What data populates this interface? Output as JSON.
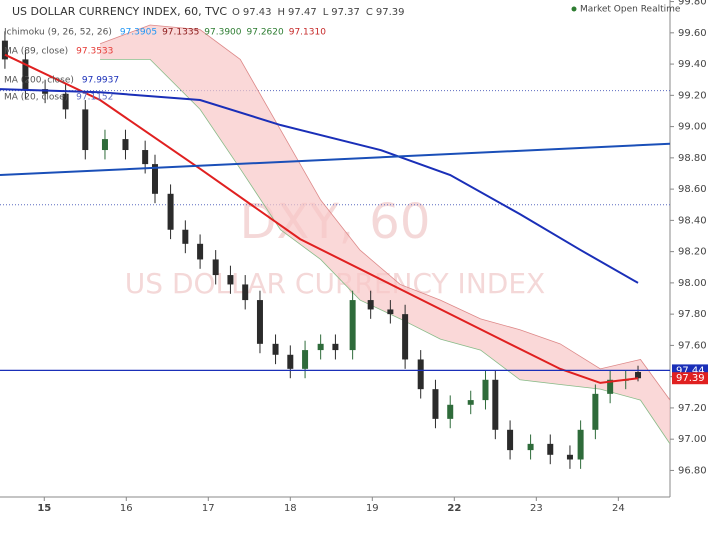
{
  "chart_data": {
    "type": "candlestick",
    "title": "US DOLLAR CURRENCY INDEX, 60, TVC",
    "status": "Market Open Realtime",
    "watermark": [
      "DXY, 60",
      "US DOLLAR CURRENCY INDEX"
    ],
    "ohlc_header": [
      {
        "label": "O",
        "value": "97.43"
      },
      {
        "label": "H",
        "value": "97.47"
      },
      {
        "label": "L",
        "value": "97.37"
      },
      {
        "label": "C",
        "value": "97.39"
      }
    ],
    "indicators": [
      {
        "label": "Ichimoku (9, 26, 52, 26)",
        "values": [
          "97.3905",
          "97.1335",
          "97.3900",
          "97.2620",
          "97.1310"
        ],
        "colors": [
          "#2196f3",
          "#8b1a1a",
          "#2e7d32",
          "#2e7d32",
          "#c62828"
        ]
      },
      {
        "label": "MA (89, close)",
        "values": [
          "97.3533"
        ],
        "colors": [
          "#e53935"
        ]
      },
      {
        "label": "MA (200, close)",
        "values": [
          "97.9937"
        ],
        "colors": [
          "#1a2fb8"
        ]
      },
      {
        "label": "MA (20, close)",
        "values": [
          "97.1152"
        ],
        "colors": [
          "#5c6bc0"
        ]
      }
    ],
    "x": [
      -0.48,
      -0.23,
      0.01,
      0.26,
      0.5,
      0.74,
      0.99,
      1.23,
      1.35,
      1.54,
      1.72,
      1.9,
      2.09,
      2.27,
      2.45,
      2.63,
      2.82,
      3.0,
      3.18,
      3.37,
      3.55,
      3.76,
      3.98,
      4.22,
      4.4,
      4.59,
      4.77,
      4.95,
      5.2,
      5.38,
      5.5,
      5.68,
      5.93,
      6.17,
      6.41,
      6.54,
      6.72,
      6.9,
      7.09,
      7.24
    ],
    "open": [
      99.55,
      99.43,
      99.24,
      99.21,
      99.11,
      98.85,
      98.92,
      98.85,
      98.76,
      98.57,
      98.34,
      98.25,
      98.15,
      98.05,
      97.99,
      97.89,
      97.61,
      97.54,
      97.45,
      97.57,
      97.61,
      97.57,
      97.89,
      97.83,
      97.8,
      97.51,
      97.32,
      97.13,
      97.22,
      97.25,
      97.38,
      97.06,
      96.93,
      96.97,
      96.9,
      96.87,
      97.06,
      97.29,
      97.38,
      97.43
    ],
    "high": [
      99.61,
      99.49,
      99.3,
      99.27,
      99.17,
      98.98,
      98.98,
      98.91,
      98.82,
      98.63,
      98.4,
      98.31,
      98.21,
      98.11,
      98.05,
      97.95,
      97.67,
      97.6,
      97.63,
      97.67,
      97.67,
      97.95,
      97.95,
      97.89,
      97.86,
      97.57,
      97.38,
      97.28,
      97.31,
      97.44,
      97.44,
      97.12,
      97.03,
      97.03,
      96.96,
      97.12,
      97.35,
      97.44,
      97.44,
      97.47
    ],
    "low": [
      99.37,
      99.18,
      99.15,
      99.05,
      98.79,
      98.79,
      98.79,
      98.7,
      98.51,
      98.28,
      98.19,
      98.09,
      97.99,
      97.93,
      97.83,
      97.55,
      97.48,
      97.39,
      97.39,
      97.51,
      97.51,
      97.51,
      97.77,
      97.74,
      97.45,
      97.26,
      97.07,
      97.07,
      97.16,
      97.19,
      97.0,
      96.87,
      96.87,
      96.84,
      96.81,
      96.81,
      97.0,
      97.23,
      97.32,
      97.37
    ],
    "close": [
      99.43,
      99.24,
      99.21,
      99.11,
      98.85,
      98.92,
      98.85,
      98.76,
      98.57,
      98.34,
      98.25,
      98.15,
      98.05,
      97.99,
      97.89,
      97.61,
      97.54,
      97.45,
      97.57,
      97.61,
      97.57,
      97.89,
      97.83,
      97.8,
      97.51,
      97.32,
      97.13,
      97.22,
      97.25,
      97.38,
      97.06,
      96.93,
      96.97,
      96.9,
      96.87,
      97.06,
      97.29,
      97.38,
      97.38,
      97.39
    ],
    "up_color": "#2e6b3a",
    "down_color": "#2b2b2b",
    "cloud": {
      "x": [
        0.68,
        1.29,
        1.9,
        2.39,
        2.88,
        3.37,
        3.85,
        4.34,
        4.83,
        5.32,
        5.8,
        6.29,
        6.78,
        7.27,
        7.63
      ],
      "upper": [
        99.53,
        99.65,
        99.62,
        99.43,
        98.98,
        98.53,
        98.21,
        97.99,
        97.89,
        97.77,
        97.7,
        97.61,
        97.45,
        97.51,
        97.25
      ],
      "lower": [
        99.43,
        99.43,
        99.11,
        98.73,
        98.34,
        98.15,
        97.89,
        97.77,
        97.64,
        97.57,
        97.38,
        97.35,
        97.32,
        97.25,
        96.97
      ],
      "color": "#f8c8c8"
    },
    "overlays": [
      {
        "x": [
          -0.48,
          0.68,
          1.9,
          3.12,
          4.34,
          5.56,
          6.29,
          6.78,
          7.24
        ],
        "values": [
          99.46,
          99.17,
          98.73,
          98.28,
          97.96,
          97.64,
          97.45,
          97.36,
          97.39
        ],
        "color": "#e02020",
        "width": 2
      },
      {
        "x": [
          -0.54,
          0.68,
          1.9,
          2.88,
          4.1,
          4.95,
          5.8,
          6.54,
          7.24
        ],
        "values": [
          99.24,
          99.22,
          99.17,
          99.01,
          98.85,
          98.69,
          98.44,
          98.21,
          98.0
        ],
        "color": "#1a2fb8",
        "width": 2
      },
      {
        "x": [
          -0.54,
          7.63
        ],
        "values": [
          98.69,
          98.89
        ],
        "color": "#1a4fb8",
        "width": 2
      }
    ],
    "dotted_levels": [
      99.23,
      98.5
    ],
    "hline": {
      "value": 97.44,
      "color": "#1a2fb8"
    },
    "price_labels": [
      {
        "value": 97.44,
        "label": "97.44",
        "color": "#1a2fb8"
      },
      {
        "value": 97.39,
        "label": "97.39",
        "color": "#e02020"
      }
    ],
    "xlim": [
      -0.54,
      7.63
    ],
    "ylim": [
      96.63,
      99.81
    ],
    "xticks": [
      {
        "value": 0,
        "label": "15"
      },
      {
        "value": 1,
        "label": "16"
      },
      {
        "value": 2,
        "label": "17"
      },
      {
        "value": 3,
        "label": "18"
      },
      {
        "value": 4,
        "label": "19"
      },
      {
        "value": 5,
        "label": "22"
      },
      {
        "value": 6,
        "label": "23"
      },
      {
        "value": 7,
        "label": "24"
      }
    ],
    "bold_xticks": [
      0,
      5
    ],
    "yticks": [
      {
        "value": 96.8,
        "label": "96.80"
      },
      {
        "value": 97.0,
        "label": "97.00"
      },
      {
        "value": 97.2,
        "label": "97.20"
      },
      {
        "value": 97.4,
        "label": "97.40"
      },
      {
        "value": 97.6,
        "label": "97.60"
      },
      {
        "value": 97.8,
        "label": "97.80"
      },
      {
        "value": 98.0,
        "label": "98.00"
      },
      {
        "value": 98.2,
        "label": "98.20"
      },
      {
        "value": 98.4,
        "label": "98.40"
      },
      {
        "value": 98.6,
        "label": "98.60"
      },
      {
        "value": 98.8,
        "label": "98.80"
      },
      {
        "value": 99.0,
        "label": "99.00"
      },
      {
        "value": 99.2,
        "label": "99.20"
      },
      {
        "value": 99.4,
        "label": "99.40"
      },
      {
        "value": 99.6,
        "label": "99.60"
      },
      {
        "value": 99.8,
        "label": "99.80"
      }
    ]
  }
}
